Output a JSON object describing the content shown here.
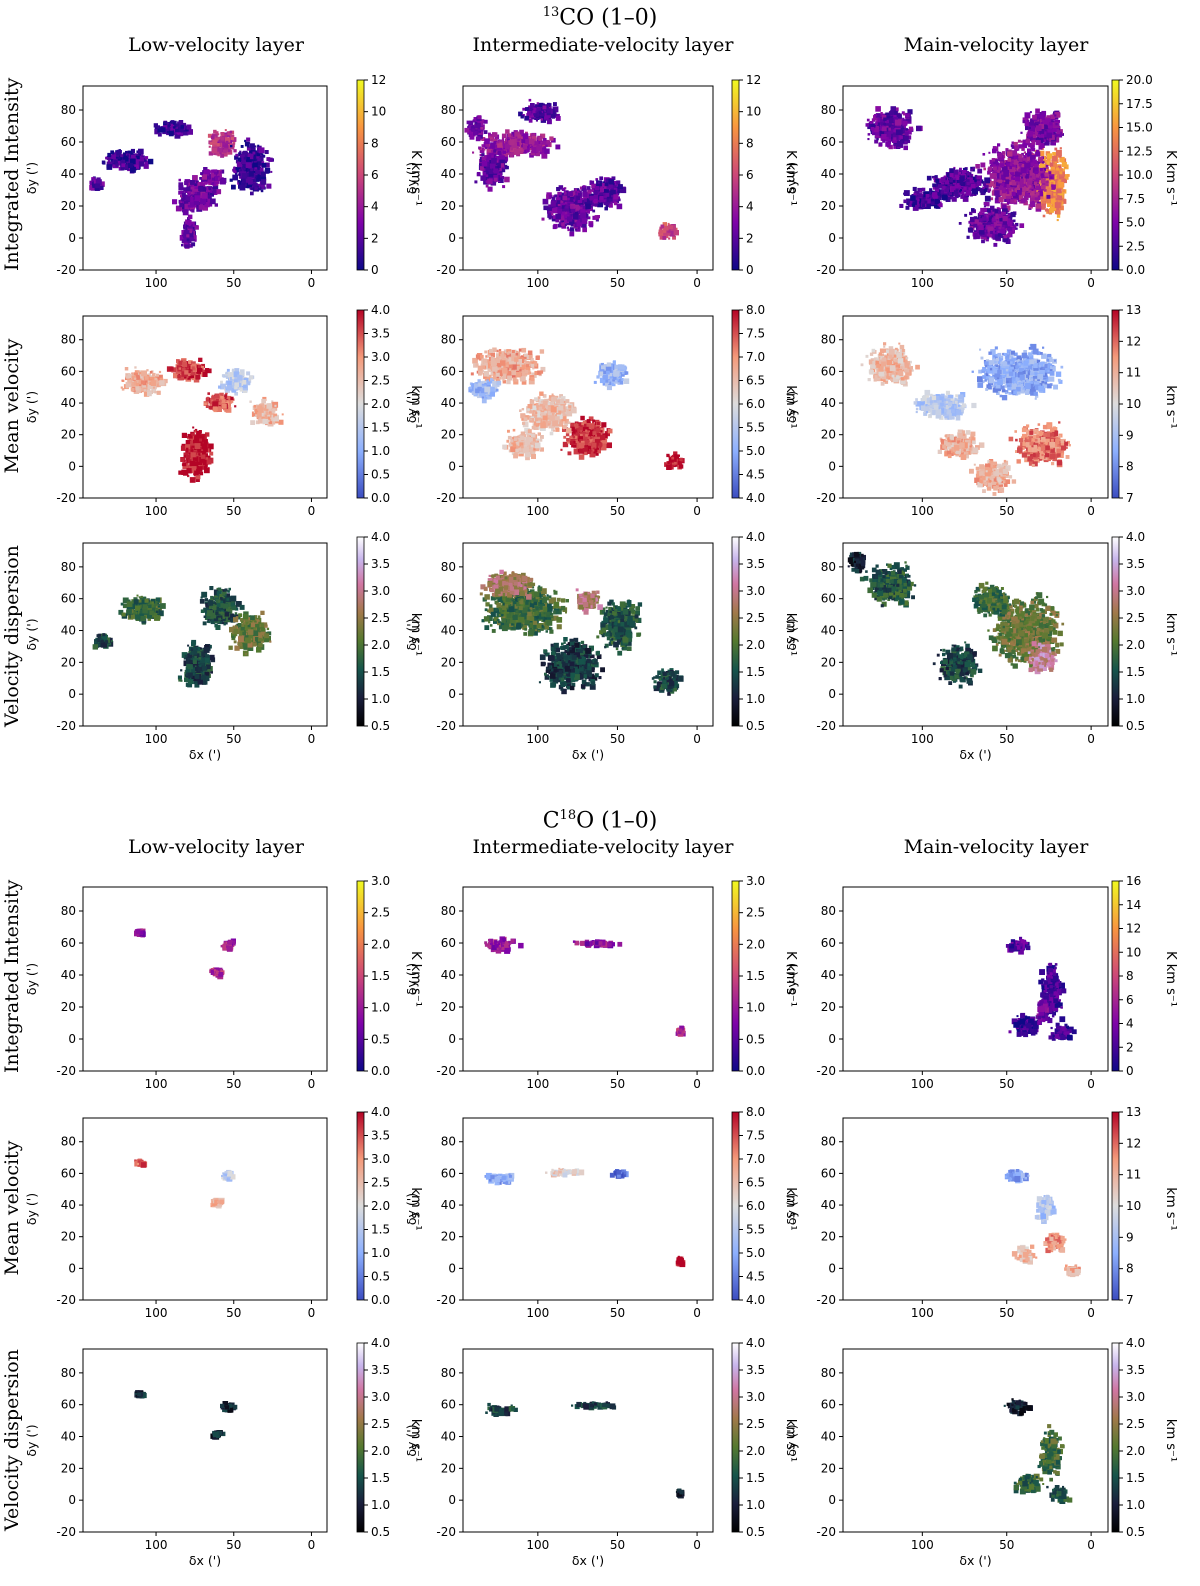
{
  "sections": [
    {
      "title_main": "CO (1–0)",
      "title_sup": "13",
      "title_pre": "",
      "title_post": "",
      "columns": [
        "Low-velocity layer",
        "Intermediate-velocity layer",
        "Main-velocity layer"
      ],
      "rows": [
        "Integrated Intensity",
        "Mean velocity",
        "Velocity dispersion"
      ]
    },
    {
      "title_pre": "C",
      "title_sup": "18",
      "title_post": "O (1–0)",
      "title_main": "",
      "columns": [
        "Low-velocity layer",
        "Intermediate-velocity layer",
        "Main-velocity layer"
      ],
      "rows": [
        "Integrated Intensity",
        "Mean velocity",
        "Velocity dispersion"
      ]
    }
  ],
  "chart_data": {
    "type": "heatmap",
    "xlabel": "δx (')",
    "ylabel": "δy (')",
    "xlim": [
      147,
      -10
    ],
    "ylim": [
      -20,
      95
    ],
    "xticks": [
      100,
      50,
      0
    ],
    "yticks": [
      -20,
      0,
      20,
      40,
      60,
      80
    ],
    "colormaps": {
      "intensity": "plasma",
      "velocity": "coolwarm",
      "dispersion": "cubehelix"
    },
    "colorbar_units": {
      "intensity": "K km s⁻¹",
      "velocity": "km s⁻¹",
      "dispersion": "km s⁻¹"
    },
    "panels": [
      {
        "section": 0,
        "row": 0,
        "col": 0,
        "cmap": "intensity",
        "vmin": 0,
        "vmax": 12,
        "ticks": [
          "0",
          "2",
          "4",
          "6",
          "8",
          "10",
          "12"
        ],
        "blobs": [
          [
            75,
            28,
            16,
            14,
            2.5
          ],
          [
            58,
            60,
            12,
            10,
            5
          ],
          [
            65,
            40,
            10,
            6,
            3
          ],
          [
            120,
            50,
            18,
            8,
            1.5
          ],
          [
            80,
            5,
            6,
            12,
            2.5
          ],
          [
            40,
            45,
            15,
            20,
            1.2
          ],
          [
            90,
            70,
            14,
            6,
            1.5
          ],
          [
            140,
            35,
            6,
            6,
            2
          ]
        ]
      },
      {
        "section": 0,
        "row": 0,
        "col": 1,
        "cmap": "intensity",
        "vmin": 0,
        "vmax": 12,
        "ticks": [
          "0",
          "2",
          "4",
          "6",
          "8",
          "10",
          "12"
        ],
        "blobs": [
          [
            115,
            60,
            30,
            10,
            4
          ],
          [
            80,
            20,
            20,
            18,
            2.5
          ],
          [
            60,
            30,
            15,
            12,
            2
          ],
          [
            20,
            5,
            8,
            6,
            6
          ],
          [
            130,
            45,
            12,
            15,
            2.5
          ],
          [
            140,
            70,
            8,
            8,
            3
          ],
          [
            100,
            80,
            15,
            8,
            2
          ]
        ]
      },
      {
        "section": 0,
        "row": 0,
        "col": 2,
        "cmap": "intensity",
        "vmin": 0,
        "vmax": 20,
        "ticks": [
          "0.0",
          "2.5",
          "5.0",
          "7.5",
          "10.0",
          "12.5",
          "15.0",
          "17.5",
          "20.0"
        ],
        "blobs": [
          [
            25,
            35,
            12,
            25,
            14
          ],
          [
            45,
            40,
            25,
            25,
            6
          ],
          [
            60,
            10,
            20,
            14,
            4
          ],
          [
            120,
            70,
            18,
            15,
            4
          ],
          [
            80,
            35,
            22,
            12,
            3
          ],
          [
            100,
            25,
            15,
            8,
            2.5
          ],
          [
            30,
            70,
            15,
            15,
            5
          ]
        ]
      },
      {
        "section": 0,
        "row": 1,
        "col": 0,
        "cmap": "velocity",
        "vmin": 0,
        "vmax": 4,
        "ticks": [
          "0.0",
          "0.5",
          "1.0",
          "1.5",
          "2.0",
          "2.5",
          "3.0",
          "3.5",
          "4.0"
        ],
        "blobs": [
          [
            75,
            10,
            12,
            20,
            4
          ],
          [
            60,
            42,
            12,
            8,
            3.5
          ],
          [
            80,
            62,
            15,
            8,
            3.6
          ],
          [
            110,
            55,
            18,
            10,
            2.7
          ],
          [
            50,
            55,
            12,
            10,
            1.6
          ],
          [
            30,
            35,
            12,
            10,
            2.6
          ]
        ]
      },
      {
        "section": 0,
        "row": 1,
        "col": 1,
        "cmap": "velocity",
        "vmin": 4,
        "vmax": 8,
        "ticks": [
          "4.0",
          "4.5",
          "5.0",
          "5.5",
          "6.0",
          "6.5",
          "7.0",
          "7.5",
          "8.0"
        ],
        "blobs": [
          [
            70,
            20,
            18,
            15,
            7.7
          ],
          [
            15,
            5,
            8,
            6,
            8
          ],
          [
            120,
            65,
            25,
            14,
            6.8
          ],
          [
            135,
            50,
            12,
            8,
            5.2
          ],
          [
            95,
            35,
            20,
            15,
            6.5
          ],
          [
            55,
            60,
            12,
            10,
            5.2
          ],
          [
            110,
            15,
            15,
            10,
            6.6
          ]
        ]
      },
      {
        "section": 0,
        "row": 1,
        "col": 2,
        "cmap": "velocity",
        "vmin": 7,
        "vmax": 13,
        "ticks": [
          "7",
          "8",
          "9",
          "10",
          "11",
          "12",
          "13"
        ],
        "blobs": [
          [
            45,
            60,
            30,
            18,
            8.5
          ],
          [
            30,
            15,
            20,
            15,
            11.8
          ],
          [
            60,
            -5,
            15,
            12,
            11
          ],
          [
            120,
            65,
            18,
            15,
            10.8
          ],
          [
            90,
            40,
            20,
            10,
            9.3
          ],
          [
            80,
            15,
            15,
            10,
            11
          ]
        ]
      },
      {
        "section": 0,
        "row": 2,
        "col": 0,
        "cmap": "dispersion",
        "vmin": 0.5,
        "vmax": 4,
        "ticks": [
          "0.5",
          "1.0",
          "1.5",
          "2.0",
          "2.5",
          "3.0",
          "3.5",
          "4.0"
        ],
        "blobs": [
          [
            60,
            55,
            15,
            15,
            1.5
          ],
          [
            75,
            20,
            12,
            18,
            1.4
          ],
          [
            110,
            55,
            18,
            10,
            1.8
          ],
          [
            135,
            35,
            8,
            6,
            1.5
          ],
          [
            40,
            40,
            15,
            15,
            2.2
          ]
        ]
      },
      {
        "section": 0,
        "row": 2,
        "col": 1,
        "cmap": "dispersion",
        "vmin": 0.5,
        "vmax": 4,
        "ticks": [
          "0.5",
          "1.0",
          "1.5",
          "2.0",
          "2.5",
          "3.0",
          "3.5",
          "4.0"
        ],
        "blobs": [
          [
            110,
            55,
            30,
            20,
            1.9
          ],
          [
            80,
            20,
            22,
            20,
            1.3
          ],
          [
            50,
            45,
            15,
            20,
            1.6
          ],
          [
            20,
            10,
            10,
            10,
            1.4
          ],
          [
            120,
            70,
            20,
            10,
            2.7
          ],
          [
            70,
            60,
            10,
            8,
            2.8
          ]
        ]
      },
      {
        "section": 0,
        "row": 2,
        "col": 2,
        "cmap": "dispersion",
        "vmin": 0.5,
        "vmax": 4,
        "ticks": [
          "0.5",
          "1.0",
          "1.5",
          "2.0",
          "2.5",
          "3.0",
          "3.5",
          "4.0"
        ],
        "blobs": [
          [
            40,
            40,
            25,
            25,
            2.2
          ],
          [
            30,
            25,
            10,
            12,
            3.1
          ],
          [
            120,
            70,
            18,
            15,
            1.6
          ],
          [
            80,
            20,
            15,
            15,
            1.4
          ],
          [
            60,
            60,
            15,
            12,
            1.9
          ],
          [
            140,
            85,
            6,
            8,
            1
          ]
        ]
      },
      {
        "section": 1,
        "row": 0,
        "col": 0,
        "cmap": "intensity",
        "vmin": 0,
        "vmax": 3,
        "ticks": [
          "0.0",
          "0.5",
          "1.0",
          "1.5",
          "2.0",
          "2.5",
          "3.0"
        ],
        "blobs": [
          [
            55,
            60,
            5,
            4,
            1.1
          ],
          [
            62,
            43,
            5,
            3,
            1.2
          ],
          [
            112,
            68,
            4,
            2,
            0.9
          ]
        ]
      },
      {
        "section": 1,
        "row": 0,
        "col": 1,
        "cmap": "intensity",
        "vmin": 0,
        "vmax": 3,
        "ticks": [
          "0.0",
          "0.5",
          "1.0",
          "1.5",
          "2.0",
          "2.5",
          "3.0"
        ],
        "blobs": [
          [
            125,
            60,
            14,
            5,
            1.0
          ],
          [
            65,
            61,
            20,
            2,
            0.9
          ],
          [
            12,
            6,
            2,
            3,
            1.2
          ]
        ]
      },
      {
        "section": 1,
        "row": 0,
        "col": 2,
        "cmap": "intensity",
        "vmin": 0,
        "vmax": 16,
        "ticks": [
          "0",
          "2",
          "4",
          "6",
          "8",
          "10",
          "12",
          "14",
          "16"
        ],
        "blobs": [
          [
            45,
            60,
            10,
            5,
            2.5
          ],
          [
            25,
            30,
            8,
            22,
            2
          ],
          [
            18,
            5,
            8,
            6,
            1.8
          ],
          [
            40,
            10,
            10,
            8,
            1.5
          ],
          [
            30,
            20,
            4,
            12,
            3.5
          ]
        ]
      },
      {
        "section": 1,
        "row": 1,
        "col": 0,
        "cmap": "velocity",
        "vmin": 0,
        "vmax": 4,
        "ticks": [
          "0.0",
          "0.5",
          "1.0",
          "1.5",
          "2.0",
          "2.5",
          "3.0",
          "3.5",
          "4.0"
        ],
        "blobs": [
          [
            55,
            60,
            4,
            4,
            1.6
          ],
          [
            62,
            43,
            5,
            3,
            2.7
          ],
          [
            112,
            68,
            4,
            2,
            3.5
          ]
        ]
      },
      {
        "section": 1,
        "row": 1,
        "col": 1,
        "cmap": "velocity",
        "vmin": 4,
        "vmax": 8,
        "ticks": [
          "4.0",
          "4.5",
          "5.0",
          "5.5",
          "6.0",
          "6.5",
          "7.0",
          "7.5",
          "8.0"
        ],
        "blobs": [
          [
            125,
            58,
            12,
            4,
            5
          ],
          [
            50,
            61,
            6,
            3,
            4.3
          ],
          [
            85,
            62,
            15,
            2,
            6.2
          ],
          [
            12,
            6,
            2,
            3,
            8
          ]
        ]
      },
      {
        "section": 1,
        "row": 1,
        "col": 2,
        "cmap": "velocity",
        "vmin": 7,
        "vmax": 13,
        "ticks": [
          "7",
          "8",
          "9",
          "10",
          "11",
          "12",
          "13"
        ],
        "blobs": [
          [
            45,
            60,
            10,
            5,
            8.5
          ],
          [
            28,
            40,
            6,
            10,
            9.2
          ],
          [
            22,
            18,
            8,
            8,
            11.5
          ],
          [
            12,
            0,
            6,
            4,
            11
          ],
          [
            40,
            10,
            8,
            6,
            10.8
          ]
        ]
      },
      {
        "section": 1,
        "row": 2,
        "col": 0,
        "cmap": "dispersion",
        "vmin": 0.5,
        "vmax": 4,
        "ticks": [
          "0.5",
          "1.0",
          "1.5",
          "2.0",
          "2.5",
          "3.0",
          "3.5",
          "4.0"
        ],
        "blobs": [
          [
            55,
            60,
            5,
            4,
            1
          ],
          [
            62,
            43,
            5,
            3,
            1
          ],
          [
            112,
            68,
            4,
            2,
            1
          ]
        ]
      },
      {
        "section": 1,
        "row": 2,
        "col": 1,
        "cmap": "dispersion",
        "vmin": 0.5,
        "vmax": 4,
        "ticks": [
          "0.5",
          "1.0",
          "1.5",
          "2.0",
          "2.5",
          "3.0",
          "3.5",
          "4.0"
        ],
        "blobs": [
          [
            125,
            58,
            12,
            4,
            1.4
          ],
          [
            65,
            61,
            20,
            2,
            1.3
          ],
          [
            12,
            6,
            2,
            3,
            1
          ]
        ]
      },
      {
        "section": 1,
        "row": 2,
        "col": 2,
        "cmap": "dispersion",
        "vmin": 0.5,
        "vmax": 4,
        "ticks": [
          "0.5",
          "1.0",
          "1.5",
          "2.0",
          "2.5",
          "3.0",
          "3.5",
          "4.0"
        ],
        "blobs": [
          [
            45,
            60,
            10,
            5,
            1
          ],
          [
            25,
            30,
            8,
            20,
            1.9
          ],
          [
            20,
            5,
            8,
            6,
            1.6
          ],
          [
            38,
            12,
            10,
            8,
            1.8
          ]
        ]
      }
    ]
  }
}
